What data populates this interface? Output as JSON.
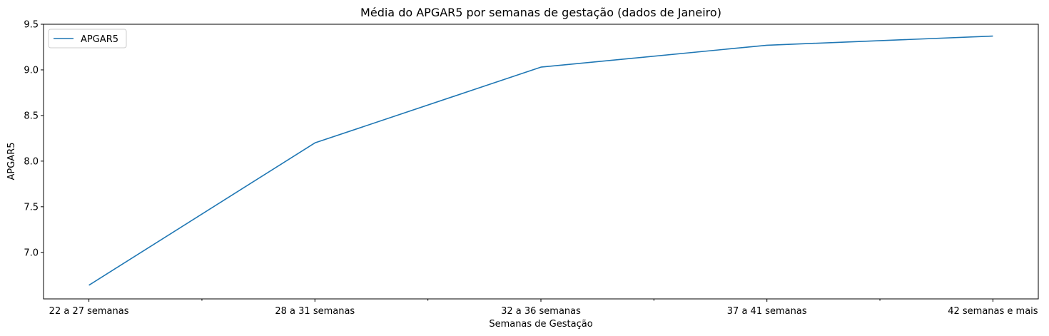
{
  "chart_data": {
    "type": "line",
    "title": "Média do APGAR5 por semanas de gestação (dados de Janeiro)",
    "xlabel": "Semanas de Gestação",
    "ylabel": "APGAR5",
    "categories": [
      "22 a 27 semanas",
      "28 a 31 semanas",
      "32 a 36 semanas",
      "37 a 41 semanas",
      "42 semanas e mais"
    ],
    "series": [
      {
        "name": "APGAR5",
        "values": [
          6.64,
          8.2,
          9.03,
          9.27,
          9.37
        ],
        "color": "#1f77b4"
      }
    ],
    "ylim": [
      6.49,
      9.5
    ],
    "yticks": [
      "7.0",
      "7.5",
      "8.0",
      "8.5",
      "9.0",
      "9.5"
    ],
    "minor_xticks": true,
    "grid": false,
    "legend": "upper-left"
  }
}
